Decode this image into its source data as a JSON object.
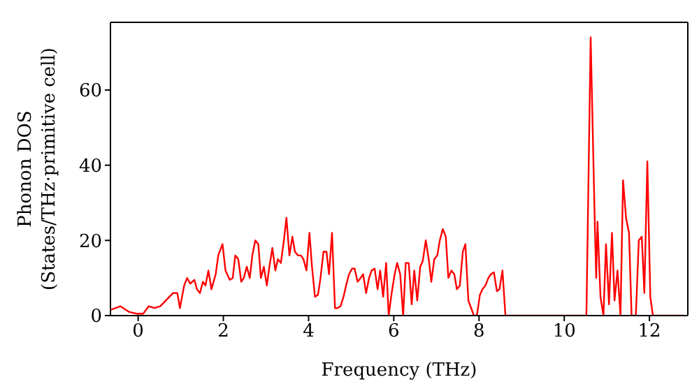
{
  "chart_data": {
    "type": "line",
    "xlabel": "Frequency (THz)",
    "ylabel": "Phonon DOS\n(States/THz·primitive cell)",
    "xlim": [
      -0.65,
      12.9
    ],
    "ylim": [
      0,
      78
    ],
    "xticks": [
      0,
      2,
      4,
      6,
      8,
      10,
      12
    ],
    "yticks": [
      0,
      20,
      40,
      60
    ],
    "grid": false,
    "legend": false,
    "marker": "none",
    "line_style": "solid",
    "x": [
      -0.65,
      -0.42,
      -0.22,
      -0.02,
      0.12,
      0.25,
      0.38,
      0.52,
      0.65,
      0.82,
      0.92,
      0.98,
      1.08,
      1.15,
      1.22,
      1.32,
      1.38,
      1.45,
      1.52,
      1.58,
      1.65,
      1.72,
      1.82,
      1.88,
      1.98,
      2.05,
      2.15,
      2.22,
      2.28,
      2.35,
      2.42,
      2.48,
      2.55,
      2.62,
      2.68,
      2.75,
      2.82,
      2.88,
      2.95,
      3.02,
      3.08,
      3.15,
      3.22,
      3.28,
      3.35,
      3.42,
      3.48,
      3.55,
      3.62,
      3.68,
      3.75,
      3.82,
      3.88,
      3.95,
      4.02,
      4.08,
      4.15,
      4.22,
      4.28,
      4.35,
      4.42,
      4.48,
      4.55,
      4.62,
      4.68,
      4.75,
      4.82,
      4.88,
      4.95,
      5.02,
      5.08,
      5.15,
      5.22,
      5.28,
      5.35,
      5.42,
      5.48,
      5.55,
      5.62,
      5.68,
      5.75,
      5.82,
      5.88,
      5.95,
      6.02,
      6.08,
      6.15,
      6.22,
      6.28,
      6.35,
      6.42,
      6.48,
      6.55,
      6.62,
      6.68,
      6.75,
      6.82,
      6.88,
      6.95,
      7.02,
      7.08,
      7.15,
      7.22,
      7.28,
      7.35,
      7.42,
      7.48,
      7.55,
      7.62,
      7.68,
      7.75,
      7.88,
      7.95,
      8.02,
      8.08,
      8.15,
      8.22,
      8.28,
      8.35,
      8.42,
      8.48,
      8.55,
      8.62,
      8.72,
      10.52,
      10.62,
      10.72,
      10.75,
      10.78,
      10.85,
      10.92,
      10.98,
      11.05,
      11.12,
      11.18,
      11.25,
      11.32,
      11.38,
      11.45,
      11.52,
      11.58,
      11.68,
      11.75,
      11.82,
      11.88,
      11.95,
      12.02,
      12.08,
      12.8
    ],
    "series": [
      {
        "color": "#ff0000",
        "values": [
          1.5,
          2.5,
          1,
          0.5,
          0.5,
          2.5,
          2,
          2.5,
          4,
          6,
          6,
          2,
          8,
          10,
          8.5,
          9.5,
          7,
          6,
          9,
          8,
          12,
          7,
          11,
          16,
          19,
          12,
          9.5,
          10,
          16,
          15,
          9,
          10,
          13,
          10,
          16,
          20,
          19,
          10,
          13,
          8,
          13,
          18,
          12,
          15,
          14,
          20,
          26,
          16,
          21,
          17,
          16,
          16,
          15,
          12,
          22,
          13,
          5,
          5.5,
          10,
          17,
          17,
          11,
          22,
          2,
          2,
          2.5,
          5,
          8,
          11,
          12.5,
          12.5,
          9,
          10,
          11,
          6,
          10,
          12,
          12.5,
          7,
          12,
          5,
          14,
          0,
          6,
          11,
          14,
          11,
          0,
          14,
          14,
          3,
          12,
          4,
          13,
          14.5,
          20,
          15,
          9,
          15,
          16,
          20,
          23,
          21,
          10,
          12,
          11,
          7,
          8,
          17,
          19,
          4,
          0,
          0,
          5.5,
          7,
          8,
          10,
          11,
          11.5,
          6.5,
          7,
          12,
          0,
          0,
          0,
          74,
          23,
          10,
          25,
          5,
          0,
          19,
          3,
          22,
          4,
          12,
          0,
          36,
          26,
          22,
          0,
          0,
          20,
          21,
          6,
          41,
          5,
          0,
          0
        ]
      }
    ]
  }
}
